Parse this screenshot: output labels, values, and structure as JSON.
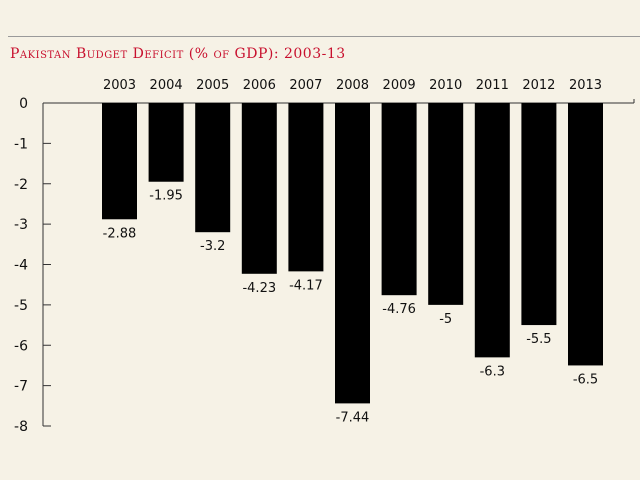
{
  "chart_data": {
    "type": "bar",
    "title": "Pakistan Budget Deficit (% of GDP): 2003-13",
    "categories": [
      "2003",
      "2004",
      "2005",
      "2006",
      "2007",
      "2008",
      "2009",
      "2010",
      "2011",
      "2012",
      "2013"
    ],
    "values": [
      -2.88,
      -1.95,
      -3.2,
      -4.23,
      -4.17,
      -7.44,
      -4.76,
      -5,
      -6.3,
      -5.5,
      -6.5
    ],
    "value_labels": [
      "-2.88",
      "-1.95",
      "-3.2",
      "-4.23",
      "-4.17",
      "-7.44",
      "-4.76",
      "-5",
      "-6.3",
      "-5.5",
      "-6.5"
    ],
    "yticks": [
      "0",
      "-1",
      "-2",
      "-3",
      "-4",
      "-5",
      "-6",
      "-7",
      "-8"
    ],
    "ylim": [
      -8,
      0
    ],
    "xlabel": "",
    "ylabel": "",
    "grid": false,
    "category_labels_position": "top",
    "colors": {
      "bar": "#000000",
      "title": "#c8102e",
      "background": "#f6f2e6"
    }
  }
}
